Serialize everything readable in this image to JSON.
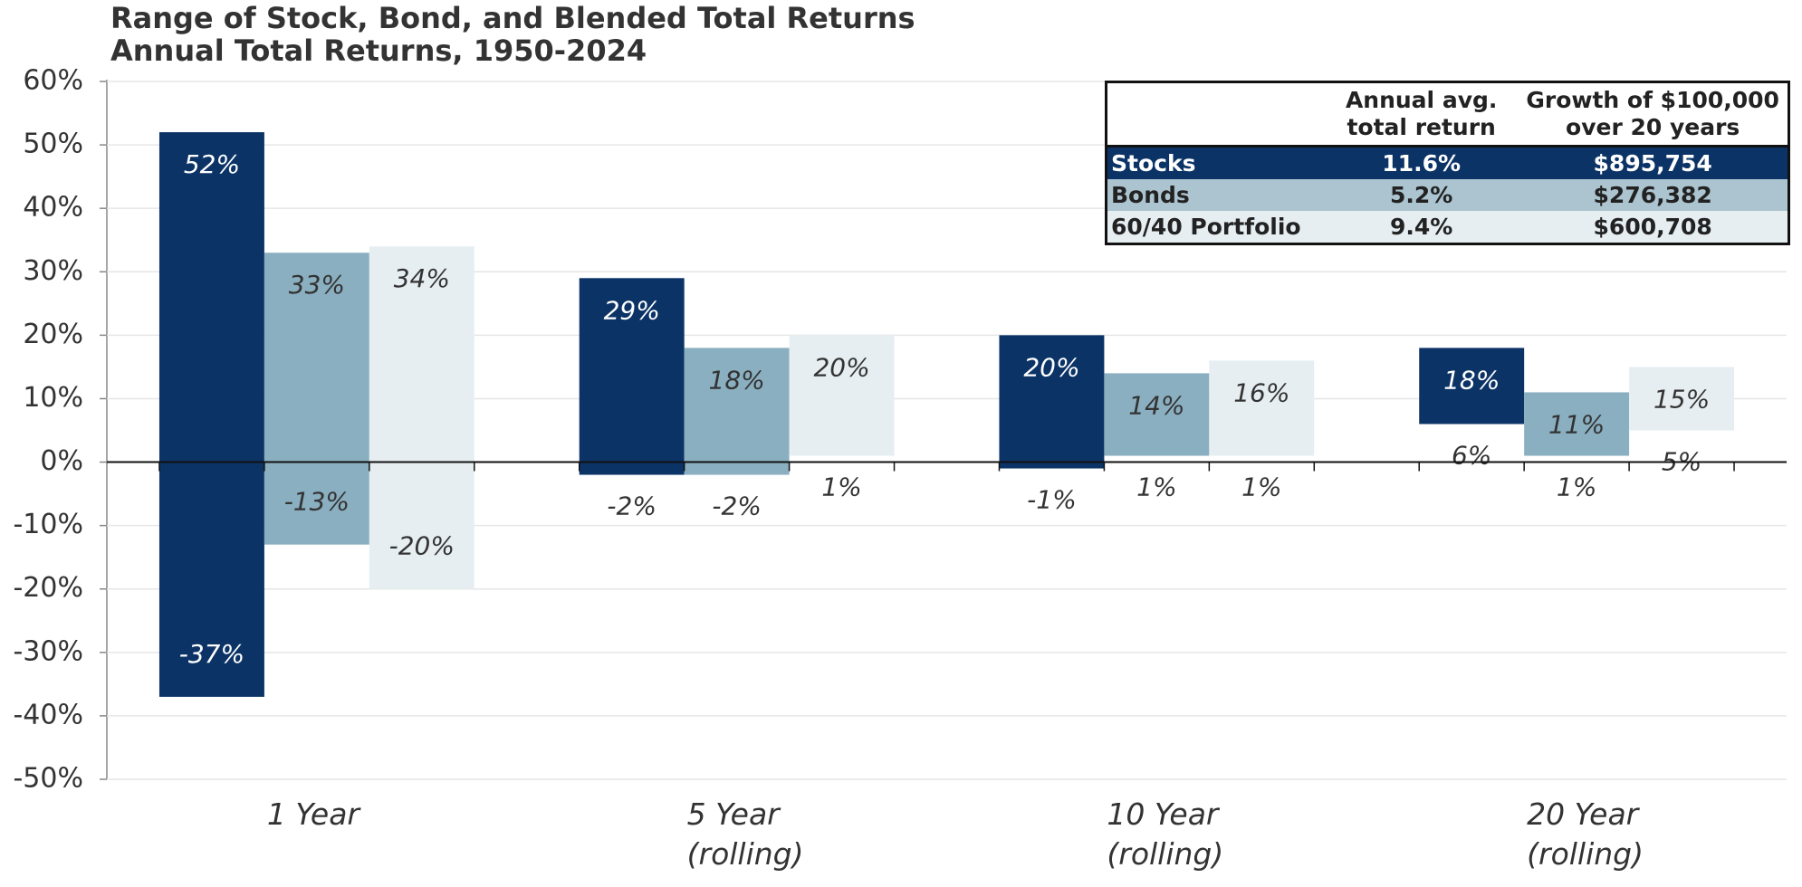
{
  "chart_data": {
    "type": "range_bar",
    "title": "Range of Stock, Bond, and Blended Total Returns",
    "subtitle": "Annual Total Returns, 1950-2024",
    "categories": [
      "1 Year",
      "5 Year (rolling)",
      "10 Year (rolling)",
      "20 Year (rolling)"
    ],
    "series": [
      {
        "name": "Stocks",
        "color": "#0b3366",
        "high": [
          52,
          29,
          20,
          18
        ],
        "low": [
          -37,
          -2,
          -1,
          6
        ],
        "high_labels": [
          "52%",
          "29%",
          "20%",
          "18%"
        ],
        "low_labels": [
          "-37%",
          "-2%",
          "-1%",
          "6%"
        ]
      },
      {
        "name": "Bonds",
        "color": "#8aafc0",
        "high": [
          33,
          18,
          14,
          11
        ],
        "low": [
          -13,
          -2,
          1,
          1
        ],
        "high_labels": [
          "33%",
          "18%",
          "14%",
          "11%"
        ],
        "low_labels": [
          "-13%",
          "-2%",
          "1%",
          "1%"
        ]
      },
      {
        "name": "60/40 Portfolio",
        "color": "#e6eef2",
        "high": [
          34,
          20,
          16,
          15
        ],
        "low": [
          -20,
          1,
          1,
          5
        ],
        "high_labels": [
          "34%",
          "20%",
          "16%",
          "15%"
        ],
        "low_labels": [
          "-20%",
          "1%",
          "1%",
          "5%"
        ]
      }
    ],
    "ylim": [
      -50,
      60
    ],
    "yticks": [
      {
        "value": -50,
        "label": "-50%"
      },
      {
        "value": -40,
        "label": "-40%"
      },
      {
        "value": -30,
        "label": "-30%"
      },
      {
        "value": -20,
        "label": "-20%"
      },
      {
        "value": -10,
        "label": "-10%"
      },
      {
        "value": 0,
        "label": "0%"
      },
      {
        "value": 10,
        "label": "10%"
      },
      {
        "value": 20,
        "label": "20%"
      },
      {
        "value": 30,
        "label": "30%"
      },
      {
        "value": 40,
        "label": "40%"
      },
      {
        "value": 50,
        "label": "50%"
      },
      {
        "value": 60,
        "label": "60%"
      }
    ],
    "grid": true,
    "table": {
      "columns": [
        "Annual avg. total return",
        "Growth of $100,000 over 20 years"
      ],
      "row_colors": [
        "#0b3366",
        "#abc4cf",
        "#e6eef2"
      ],
      "rows": [
        [
          "11.6%",
          "$895,754"
        ],
        [
          "5.2%",
          "$276,382"
        ],
        [
          "9.4%",
          "$600,708"
        ]
      ]
    }
  }
}
